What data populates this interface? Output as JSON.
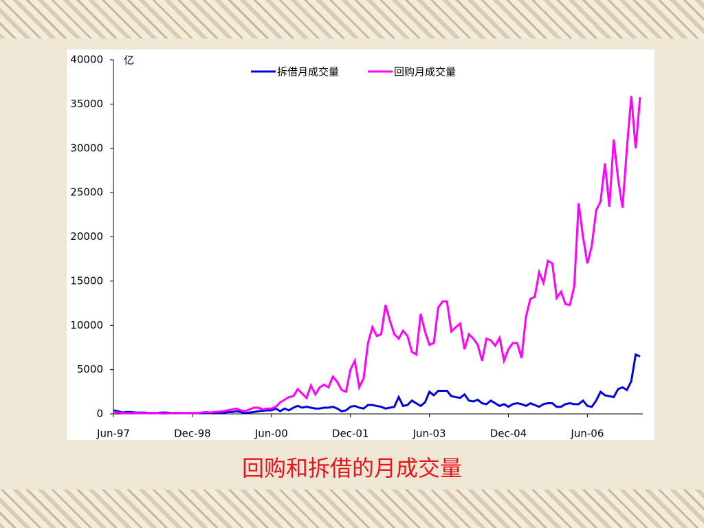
{
  "chart_data": {
    "type": "line",
    "title": "回购和拆借的月成交量",
    "unit": "亿",
    "categories": [
      "Jun-97",
      null,
      null,
      null,
      null,
      null,
      null,
      null,
      null,
      null,
      null,
      null,
      null,
      null,
      null,
      null,
      null,
      null,
      "Dec-98",
      null,
      null,
      null,
      null,
      null,
      null,
      null,
      null,
      null,
      null,
      null,
      null,
      null,
      null,
      null,
      null,
      null,
      "Jun-00",
      null,
      null,
      null,
      null,
      null,
      null,
      null,
      null,
      null,
      null,
      null,
      null,
      null,
      null,
      null,
      null,
      null,
      "Dec-01",
      null,
      null,
      null,
      null,
      null,
      null,
      null,
      null,
      null,
      null,
      null,
      null,
      null,
      null,
      null,
      null,
      null,
      "Jun-03",
      null,
      null,
      null,
      null,
      null,
      null,
      null,
      null,
      null,
      null,
      null,
      null,
      null,
      null,
      null,
      null,
      null,
      "Dec-04",
      null,
      null,
      null,
      null,
      null,
      null,
      null,
      null,
      null,
      null,
      null,
      null,
      null,
      null,
      null,
      null,
      null,
      "Jun-06",
      null,
      null,
      null,
      null,
      null,
      null,
      null,
      null,
      null,
      null,
      null,
      null
    ],
    "series": [
      {
        "name": "拆借月成交量",
        "color": "#0000e0",
        "values": [
          400,
          300,
          150,
          200,
          200,
          150,
          150,
          150,
          100,
          100,
          100,
          150,
          150,
          100,
          100,
          100,
          100,
          100,
          100,
          100,
          100,
          100,
          100,
          150,
          150,
          100,
          200,
          200,
          300,
          200,
          100,
          150,
          200,
          300,
          350,
          400,
          400,
          600,
          300,
          600,
          400,
          700,
          900,
          700,
          800,
          700,
          600,
          600,
          700,
          700,
          800,
          600,
          300,
          400,
          800,
          900,
          700,
          600,
          1000,
          1000,
          900,
          800,
          600,
          700,
          800,
          1900,
          900,
          1000,
          1500,
          1200,
          900,
          1300,
          2500,
          2100,
          2600,
          2600,
          2600,
          2000,
          1900,
          1800,
          2200,
          1500,
          1400,
          1600,
          1200,
          1100,
          1500,
          1200,
          900,
          1100,
          800,
          1100,
          1200,
          1100,
          900,
          1200,
          1000,
          800,
          1100,
          1200,
          1200,
          800,
          800,
          1100,
          1200,
          1100,
          1100,
          1500,
          900,
          800,
          1500,
          2500,
          2100,
          2000,
          1900,
          2800,
          3000,
          2700,
          3700,
          6700,
          6500
        ]
      },
      {
        "name": "回购月成交量",
        "color": "#ff00ff",
        "values": [
          200,
          150,
          100,
          100,
          100,
          100,
          100,
          80,
          100,
          100,
          80,
          50,
          50,
          80,
          100,
          100,
          80,
          100,
          100,
          100,
          150,
          200,
          150,
          200,
          250,
          300,
          400,
          500,
          600,
          400,
          300,
          500,
          700,
          700,
          500,
          600,
          600,
          800,
          1300,
          1600,
          1900,
          2000,
          2800,
          2300,
          1800,
          3200,
          2200,
          3000,
          3300,
          3000,
          4200,
          3600,
          2700,
          2500,
          5000,
          6000,
          3000,
          4000,
          8000,
          9800,
          8800,
          9000,
          12300,
          10500,
          9000,
          8500,
          9400,
          8800,
          7000,
          6700,
          11300,
          9300,
          7800,
          8000,
          12000,
          12700,
          12700,
          9300,
          9800,
          10200,
          7300,
          9000,
          8500,
          7800,
          6000,
          8500,
          8300,
          7700,
          8600,
          6000,
          7300,
          8000,
          8000,
          6300,
          11000,
          13000,
          13200,
          16000,
          14800,
          17300,
          17000,
          13100,
          13800,
          12400,
          12300,
          14400,
          23800,
          20000,
          17000,
          19000,
          23000,
          24000,
          28300,
          23400,
          31000,
          26500,
          23300,
          30000,
          35900,
          30000,
          35800
        ]
      }
    ],
    "ylim": [
      0,
      40000
    ],
    "yticks": [
      0,
      5000,
      10000,
      15000,
      20000,
      25000,
      30000,
      35000,
      40000
    ]
  }
}
